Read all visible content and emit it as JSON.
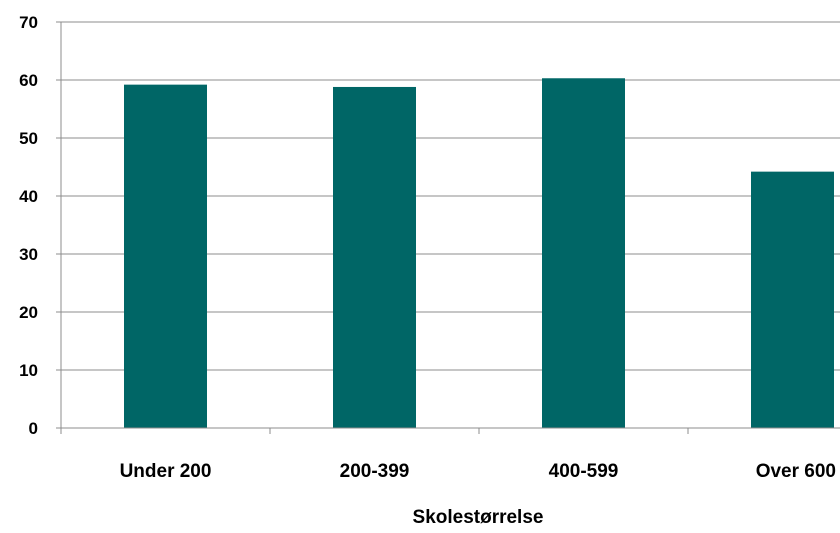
{
  "chart_data": {
    "type": "bar",
    "title": "",
    "xlabel": "Skolestørrelse",
    "ylabel": "",
    "categories": [
      "Under 200",
      "200-399",
      "400-599",
      "Over 600"
    ],
    "values": [
      59.2,
      58.8,
      60.3,
      44.2
    ],
    "ylim": [
      0,
      70
    ],
    "yticks": [
      0,
      10,
      20,
      30,
      40,
      50,
      60,
      70
    ],
    "grid": true,
    "legend": "none",
    "bar_color": "#006666",
    "grid_color": "#8c8c8c"
  }
}
